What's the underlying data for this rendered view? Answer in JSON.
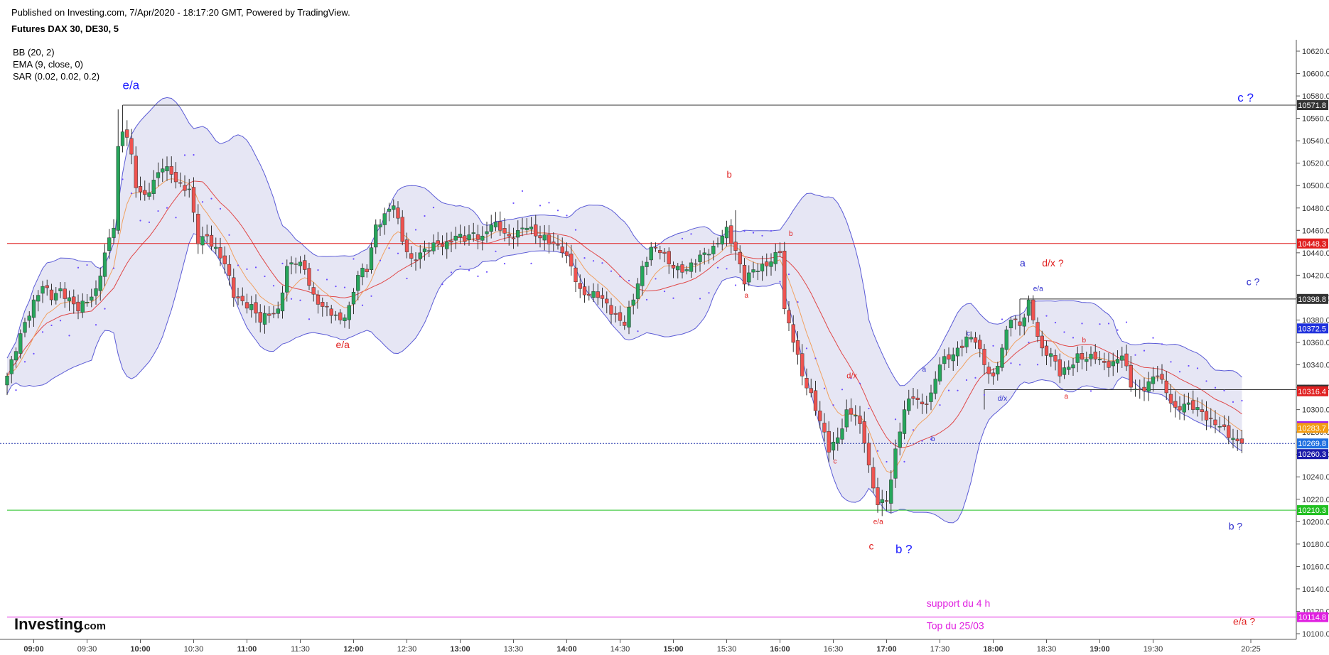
{
  "header": {
    "published": "Published on Investing.com, 7/Apr/2020 - 18:17:20 GMT, Powered by TradingView.",
    "symbol": "Futures DAX 30, DE30, 5",
    "indicators": [
      "BB (20, 2)",
      "EMA (9, close, 0)",
      "SAR (0.02, 0.02, 0.2)"
    ]
  },
  "logo": {
    "text": "Investing",
    "suffix": ".com"
  },
  "colors": {
    "up": "#26a65b",
    "down": "#ef5350",
    "bb_line": "#5b5bd6",
    "bb_fill": "#e3e3f3",
    "ema": "#f0a060",
    "basis": "#e04848",
    "sar": "#6a4cff",
    "annotation_blue": "#1a1aff",
    "annotation_red": "#e02020",
    "annotation_magenta": "#e020e0"
  },
  "chart_data": {
    "type": "candlestick",
    "ylim": [
      10095,
      10625
    ],
    "y_ticks": [
      10100.0,
      10120.0,
      10140.0,
      10160.0,
      10180.0,
      10200.0,
      10220.0,
      10240.0,
      10260.0,
      10280.0,
      10300.0,
      10320.0,
      10340.0,
      10360.0,
      10380.0,
      10400.0,
      10420.0,
      10440.0,
      10460.0,
      10480.0,
      10500.0,
      10520.0,
      10540.0,
      10560.0,
      10580.0,
      10600.0,
      10620.0
    ],
    "x_ticks": [
      {
        "label": "09:00",
        "bar": 6,
        "bold": true
      },
      {
        "label": "09:30",
        "bar": 18,
        "bold": false
      },
      {
        "label": "10:00",
        "bar": 30,
        "bold": true
      },
      {
        "label": "10:30",
        "bar": 42,
        "bold": false
      },
      {
        "label": "11:00",
        "bar": 54,
        "bold": true
      },
      {
        "label": "11:30",
        "bar": 66,
        "bold": false
      },
      {
        "label": "12:00",
        "bar": 78,
        "bold": true
      },
      {
        "label": "12:30",
        "bar": 90,
        "bold": false
      },
      {
        "label": "13:00",
        "bar": 102,
        "bold": true
      },
      {
        "label": "13:30",
        "bar": 114,
        "bold": false
      },
      {
        "label": "14:00",
        "bar": 126,
        "bold": true
      },
      {
        "label": "14:30",
        "bar": 138,
        "bold": false
      },
      {
        "label": "15:00",
        "bar": 150,
        "bold": true
      },
      {
        "label": "15:30",
        "bar": 162,
        "bold": false
      },
      {
        "label": "16:00",
        "bar": 174,
        "bold": true
      },
      {
        "label": "16:30",
        "bar": 186,
        "bold": false
      },
      {
        "label": "17:00",
        "bar": 198,
        "bold": true
      },
      {
        "label": "17:30",
        "bar": 210,
        "bold": false
      },
      {
        "label": "18:00",
        "bar": 222,
        "bold": true
      },
      {
        "label": "18:30",
        "bar": 234,
        "bold": false
      },
      {
        "label": "19:00",
        "bar": 246,
        "bold": true
      },
      {
        "label": "19:30",
        "bar": 258,
        "bold": false
      },
      {
        "label": "20:25",
        "bar": 280,
        "bold": false
      }
    ],
    "levels": [
      {
        "value": 10571.8,
        "label": "10571.8",
        "color": "#333333",
        "tag": "#333333",
        "start_bar": 26
      },
      {
        "value": 10448.3,
        "label": "10448.3",
        "color": "#e02020",
        "tag": "#e02020",
        "start_bar": 0
      },
      {
        "value": 10398.8,
        "label": "10398.8",
        "color": "#333333",
        "tag": "#333333",
        "start_bar": 228
      },
      {
        "value": 10317.8,
        "label": "10317.8",
        "color": "#333333",
        "tag": "#333333",
        "start_bar": 220
      },
      {
        "value": 10210.3,
        "label": "10210.3",
        "color": "#22c022",
        "tag": "#22c022",
        "start_bar": 0
      },
      {
        "value": 10114.8,
        "label": "10114.8",
        "color": "#e020e0",
        "tag": "#e020e0",
        "start_bar": 0
      }
    ],
    "price_tags": [
      {
        "label": "10372.5",
        "value": 10372.5,
        "color": "#2233dd"
      },
      {
        "label": "10316.4",
        "value": 10316.4,
        "color": "#e02020"
      },
      {
        "label": "10285.2",
        "value": 10285.2,
        "color": "#a020f0"
      },
      {
        "label": "10283.7",
        "value": 10283.7,
        "color": "#f39c12"
      },
      {
        "label": "10269.8",
        "value": 10269.8,
        "color": "#1f6fe0"
      },
      {
        "label": "10260.3",
        "value": 10260.3,
        "color": "#1a1aaa"
      }
    ],
    "current_price": 10269.8,
    "annotations": [
      {
        "text": "e/a",
        "bar": 26,
        "value": 10586,
        "color": "#1a1aff",
        "size": 17
      },
      {
        "text": "e/a",
        "bar": 74,
        "value": 10355,
        "color": "#e02020",
        "size": 14
      },
      {
        "text": "b",
        "bar": 162,
        "value": 10507,
        "color": "#e02020",
        "size": 13
      },
      {
        "text": "b",
        "bar": 176,
        "value": 10455,
        "color": "#e02020",
        "size": 10
      },
      {
        "text": "a",
        "bar": 166,
        "value": 10400,
        "color": "#e02020",
        "size": 10
      },
      {
        "text": "d/x",
        "bar": 189,
        "value": 10328,
        "color": "#e02020",
        "size": 11
      },
      {
        "text": "c",
        "bar": 186,
        "value": 10252,
        "color": "#e02020",
        "size": 10
      },
      {
        "text": "e/a",
        "bar": 195,
        "value": 10198,
        "color": "#e02020",
        "size": 10
      },
      {
        "text": "c",
        "bar": 194,
        "value": 10175,
        "color": "#e02020",
        "size": 14
      },
      {
        "text": "b ?",
        "bar": 200,
        "value": 10172,
        "color": "#1a1aff",
        "size": 17
      },
      {
        "text": "a",
        "bar": 206,
        "value": 10334,
        "color": "#2b2bcc",
        "size": 10
      },
      {
        "text": "b",
        "bar": 208,
        "value": 10272,
        "color": "#2b2bcc",
        "size": 10
      },
      {
        "text": "c",
        "bar": 216,
        "value": 10366,
        "color": "#2b2bcc",
        "size": 10
      },
      {
        "text": "d/x",
        "bar": 223,
        "value": 10308,
        "color": "#2b2bcc",
        "size": 10
      },
      {
        "text": "a",
        "bar": 228,
        "value": 10428,
        "color": "#2b2bcc",
        "size": 14
      },
      {
        "text": "d/x ?",
        "bar": 233,
        "value": 10428,
        "color": "#e02020",
        "size": 14
      },
      {
        "text": "e/a",
        "bar": 231,
        "value": 10406,
        "color": "#2b2bcc",
        "size": 10
      },
      {
        "text": "b",
        "bar": 242,
        "value": 10360,
        "color": "#e02020",
        "size": 10
      },
      {
        "text": "a",
        "bar": 238,
        "value": 10310,
        "color": "#e02020",
        "size": 10
      },
      {
        "text": "c ?",
        "bar": 277,
        "value": 10575,
        "color": "#1a1aff",
        "size": 17
      },
      {
        "text": "c ?",
        "bar": 279,
        "value": 10411,
        "color": "#2b2bcc",
        "size": 14
      },
      {
        "text": "b ?",
        "bar": 275,
        "value": 10193,
        "color": "#2b2bcc",
        "size": 14
      },
      {
        "text": "e/a ?",
        "bar": 276,
        "value": 10108,
        "color": "#e02020",
        "size": 14
      },
      {
        "text": "support du 4 h",
        "bar": 207,
        "value": 10124,
        "color": "#e020e0",
        "size": 14
      },
      {
        "text": "Top du 25/03",
        "bar": 207,
        "value": 10104,
        "color": "#e020e0",
        "size": 14
      }
    ],
    "waypoints": [
      [
        0,
        10330
      ],
      [
        2,
        10352
      ],
      [
        4,
        10378
      ],
      [
        6,
        10398
      ],
      [
        8,
        10410
      ],
      [
        10,
        10398
      ],
      [
        12,
        10408
      ],
      [
        14,
        10400
      ],
      [
        16,
        10388
      ],
      [
        18,
        10396
      ],
      [
        20,
        10408
      ],
      [
        22,
        10440
      ],
      [
        24,
        10462
      ],
      [
        25,
        10535
      ],
      [
        26,
        10548
      ],
      [
        27,
        10543
      ],
      [
        28,
        10528
      ],
      [
        29,
        10498
      ],
      [
        31,
        10492
      ],
      [
        33,
        10505
      ],
      [
        35,
        10515
      ],
      [
        37,
        10510
      ],
      [
        39,
        10502
      ],
      [
        41,
        10497
      ],
      [
        43,
        10448
      ],
      [
        45,
        10455
      ],
      [
        47,
        10445
      ],
      [
        49,
        10430
      ],
      [
        51,
        10400
      ],
      [
        53,
        10397
      ],
      [
        55,
        10394
      ],
      [
        57,
        10378
      ],
      [
        59,
        10384
      ],
      [
        61,
        10390
      ],
      [
        63,
        10428
      ],
      [
        65,
        10430
      ],
      [
        67,
        10425
      ],
      [
        69,
        10403
      ],
      [
        71,
        10392
      ],
      [
        73,
        10384
      ],
      [
        75,
        10380
      ],
      [
        77,
        10393
      ],
      [
        79,
        10420
      ],
      [
        81,
        10423
      ],
      [
        83,
        10465
      ],
      [
        85,
        10475
      ],
      [
        87,
        10482
      ],
      [
        89,
        10450
      ],
      [
        91,
        10435
      ],
      [
        93,
        10440
      ],
      [
        95,
        10442
      ],
      [
        97,
        10448
      ],
      [
        99,
        10450
      ],
      [
        101,
        10455
      ],
      [
        103,
        10450
      ],
      [
        105,
        10458
      ],
      [
        107,
        10455
      ],
      [
        109,
        10465
      ],
      [
        111,
        10460
      ],
      [
        113,
        10455
      ],
      [
        115,
        10460
      ],
      [
        117,
        10462
      ],
      [
        119,
        10455
      ],
      [
        121,
        10456
      ],
      [
        123,
        10448
      ],
      [
        125,
        10440
      ],
      [
        127,
        10428
      ],
      [
        129,
        10408
      ],
      [
        131,
        10402
      ],
      [
        133,
        10400
      ],
      [
        135,
        10395
      ],
      [
        137,
        10385
      ],
      [
        139,
        10375
      ],
      [
        141,
        10398
      ],
      [
        143,
        10428
      ],
      [
        145,
        10445
      ],
      [
        147,
        10440
      ],
      [
        149,
        10430
      ],
      [
        151,
        10428
      ],
      [
        153,
        10425
      ],
      [
        155,
        10430
      ],
      [
        157,
        10440
      ],
      [
        159,
        10446
      ],
      [
        161,
        10455
      ],
      [
        162,
        10463
      ],
      [
        164,
        10442
      ],
      [
        166,
        10412
      ],
      [
        168,
        10425
      ],
      [
        170,
        10430
      ],
      [
        172,
        10432
      ],
      [
        174,
        10440
      ],
      [
        175,
        10390
      ],
      [
        177,
        10360
      ],
      [
        179,
        10330
      ],
      [
        181,
        10315
      ],
      [
        183,
        10290
      ],
      [
        185,
        10262
      ],
      [
        187,
        10275
      ],
      [
        189,
        10300
      ],
      [
        191,
        10295
      ],
      [
        193,
        10270
      ],
      [
        195,
        10230
      ],
      [
        196,
        10215
      ],
      [
        198,
        10218
      ],
      [
        200,
        10265
      ],
      [
        202,
        10300
      ],
      [
        204,
        10310
      ],
      [
        206,
        10305
      ],
      [
        208,
        10315
      ],
      [
        210,
        10340
      ],
      [
        212,
        10345
      ],
      [
        214,
        10355
      ],
      [
        216,
        10365
      ],
      [
        218,
        10360
      ],
      [
        220,
        10340
      ],
      [
        222,
        10330
      ],
      [
        224,
        10355
      ],
      [
        226,
        10380
      ],
      [
        228,
        10375
      ],
      [
        230,
        10398
      ],
      [
        231,
        10380
      ],
      [
        233,
        10355
      ],
      [
        235,
        10350
      ],
      [
        237,
        10330
      ],
      [
        239,
        10338
      ],
      [
        241,
        10350
      ],
      [
        243,
        10345
      ],
      [
        245,
        10345
      ],
      [
        247,
        10342
      ],
      [
        249,
        10343
      ],
      [
        251,
        10348
      ],
      [
        253,
        10320
      ],
      [
        255,
        10318
      ],
      [
        257,
        10325
      ],
      [
        259,
        10330
      ],
      [
        261,
        10315
      ],
      [
        263,
        10302
      ],
      [
        265,
        10305
      ],
      [
        267,
        10300
      ],
      [
        269,
        10298
      ],
      [
        271,
        10292
      ],
      [
        273,
        10285
      ],
      [
        275,
        10275
      ],
      [
        277,
        10272
      ],
      [
        278,
        10270
      ]
    ],
    "wicks": {
      "25": 10568,
      "26": 10570,
      "164": 10478,
      "196": 10208,
      "197": 10205,
      "230": 10401,
      "275": 10256
    }
  }
}
